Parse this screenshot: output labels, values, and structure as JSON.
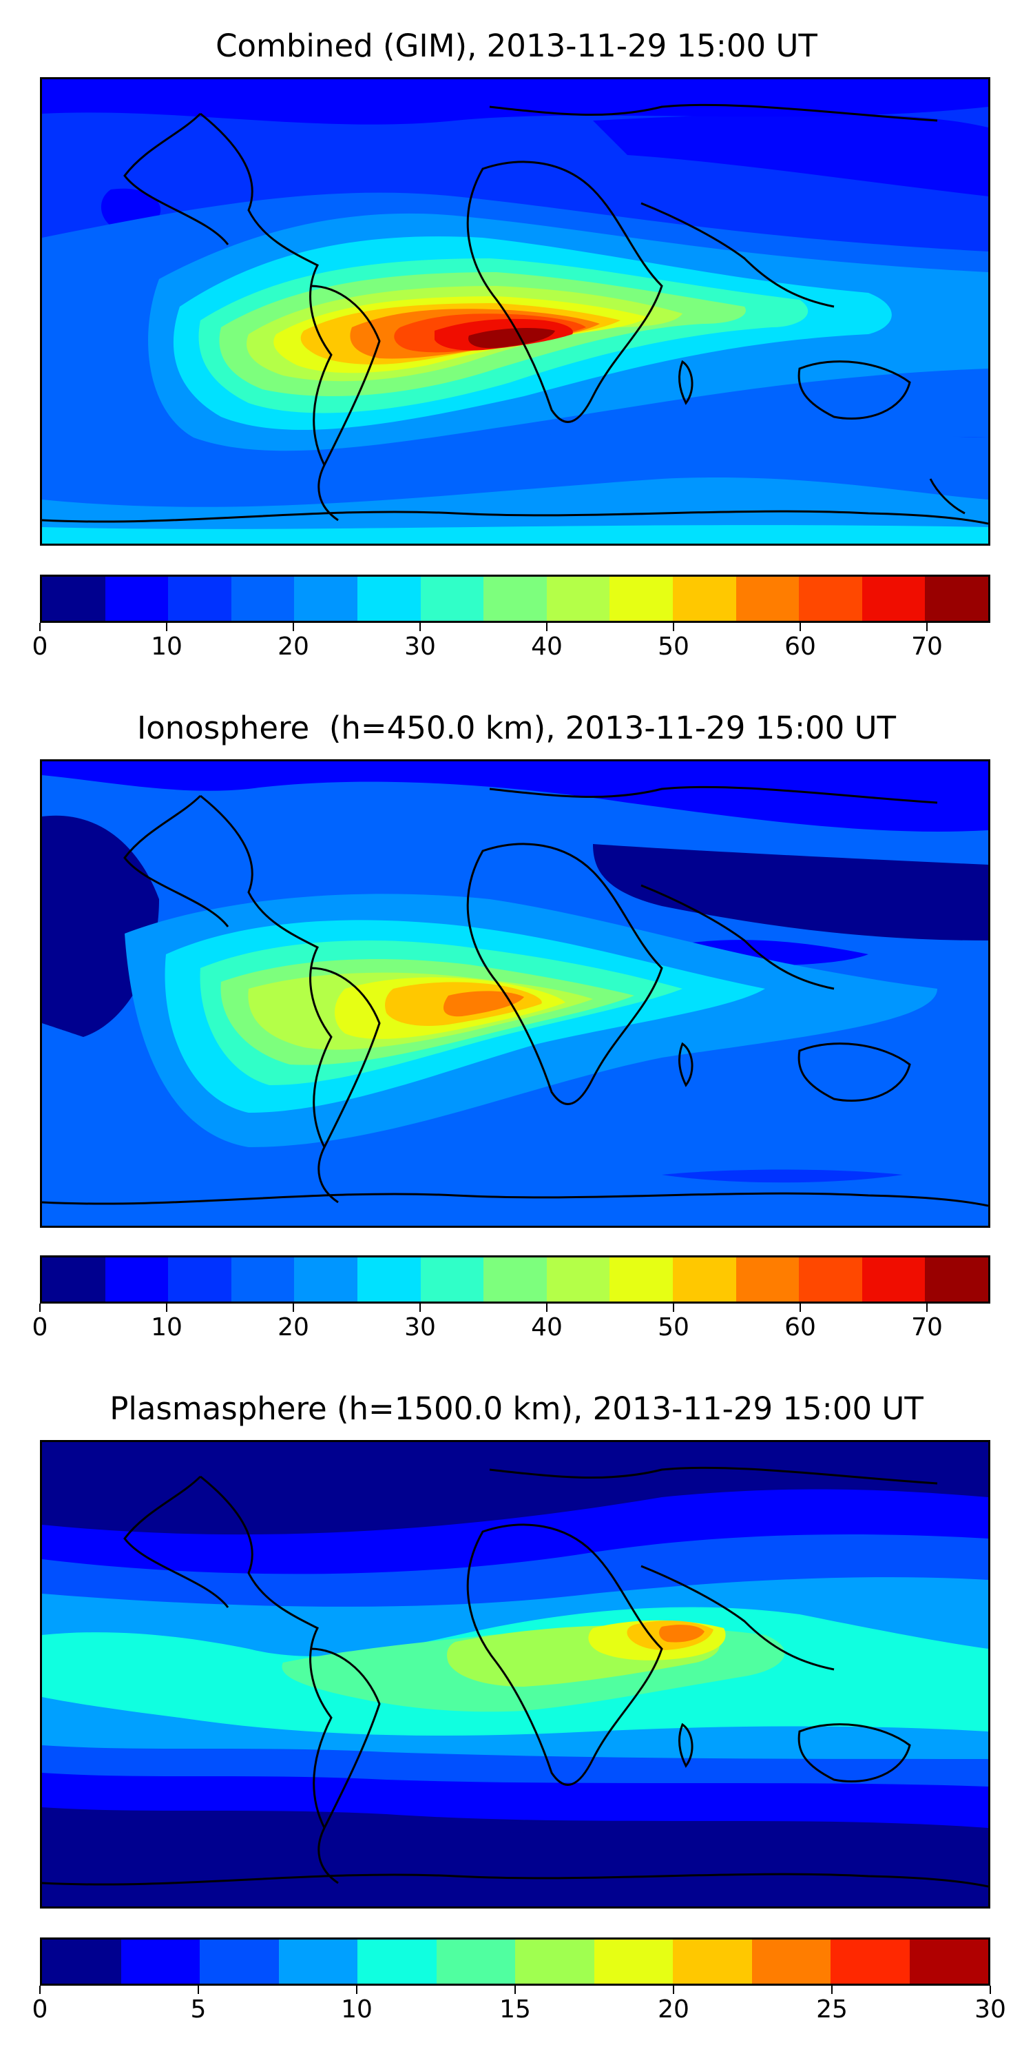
{
  "panels": [
    {
      "title": "Combined (GIM), 2013-11-29 15:00 UT",
      "map_type": "global-tec-filled-contour",
      "peak_region": "south-atlantic / southern africa",
      "colorbar": {
        "min": 0,
        "max": 75,
        "step": 5,
        "ticks": [
          "0",
          "10",
          "20",
          "30",
          "40",
          "50",
          "60",
          "70"
        ],
        "colors": [
          "#00008f",
          "#0000ff",
          "#0032ff",
          "#0064ff",
          "#0096ff",
          "#00e1ff",
          "#30ffc8",
          "#7dff7d",
          "#b4ff48",
          "#e6ff14",
          "#ffc800",
          "#ff7d00",
          "#ff4800",
          "#f00d00",
          "#990000"
        ]
      }
    },
    {
      "title": "Ionosphere  (h=450.0 km), 2013-11-29 15:00 UT",
      "map_type": "global-tec-filled-contour",
      "peak_region": "south-atlantic",
      "colorbar": {
        "min": 0,
        "max": 75,
        "step": 5,
        "ticks": [
          "0",
          "10",
          "20",
          "30",
          "40",
          "50",
          "60",
          "70"
        ],
        "colors": [
          "#00008f",
          "#0000ff",
          "#0032ff",
          "#0064ff",
          "#0096ff",
          "#00e1ff",
          "#30ffc8",
          "#7dff7d",
          "#b4ff48",
          "#e6ff14",
          "#ffc800",
          "#ff7d00",
          "#ff4800",
          "#f00d00",
          "#990000"
        ]
      }
    },
    {
      "title": "Plasmasphere (h=1500.0 km), 2013-11-29 15:00 UT",
      "map_type": "global-tec-filled-contour",
      "peak_region": "indian ocean / south asia",
      "colorbar": {
        "min": 0,
        "max": 30,
        "step": 2.5,
        "ticks": [
          "0",
          "5",
          "10",
          "15",
          "20",
          "25",
          "30"
        ],
        "colors": [
          "#00008f",
          "#0000ff",
          "#0050ff",
          "#00a0ff",
          "#10ffe0",
          "#50ffa0",
          "#a0ff50",
          "#e6ff14",
          "#ffc800",
          "#ff7d00",
          "#ff2800",
          "#b00000"
        ]
      }
    }
  ]
}
